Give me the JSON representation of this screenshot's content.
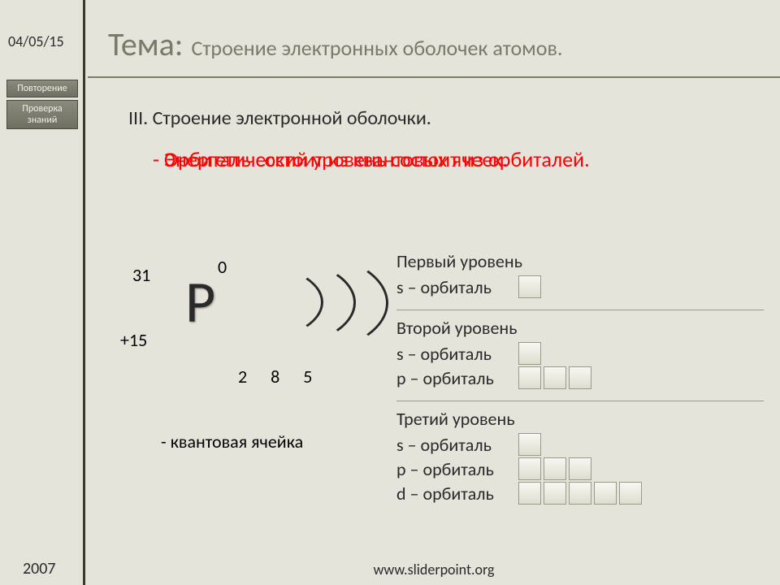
{
  "sidebar": {
    "date": "04/05/15",
    "buttons": [
      "Повторение",
      "Проверка знаний"
    ],
    "year": "2007"
  },
  "title": {
    "label": "Тема:",
    "text": "Строение электронных оболочек атомов."
  },
  "section_heading": "III. Строение электронной оболочки.",
  "red_text": {
    "line1": "- Энергетический уровень состоит из орбиталей.",
    "line2": "- Орбиталь состоит из квантовых ячеек."
  },
  "atom": {
    "symbol": "P",
    "mass": "31",
    "charge_top": "0",
    "charge": "+15",
    "electrons": "2 8 5",
    "qcell_note": "- квантовая ячейка"
  },
  "levels": [
    {
      "title": "Первый уровень",
      "orbitals": [
        {
          "label": "s – орбиталь",
          "cells": 1
        }
      ]
    },
    {
      "title": "Второй уровень",
      "orbitals": [
        {
          "label": "s – орбиталь",
          "cells": 1
        },
        {
          "label": "p – орбиталь",
          "cells": 3
        }
      ]
    },
    {
      "title": "Третий уровень",
      "orbitals": [
        {
          "label": "s – орбиталь",
          "cells": 1
        },
        {
          "label": "p – орбиталь",
          "cells": 3
        },
        {
          "label": "d – орбиталь",
          "cells": 5
        }
      ]
    }
  ],
  "footer": "www.sliderpoint.org",
  "colors": {
    "bg": "#e5e4da",
    "red": "#ff0000",
    "heading_gray": "#7a7a6a",
    "text": "#2a2a2a"
  }
}
